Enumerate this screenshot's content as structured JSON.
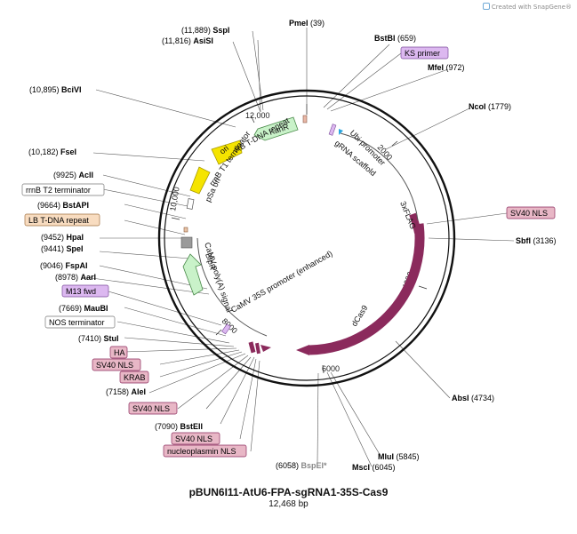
{
  "watermark": "Created with SnapGene®",
  "plasmid": {
    "name": "pBUN6I11-AtU6-FPA-sgRNA1-35S-Cas9",
    "size_label": "12,468 bp"
  },
  "ring_ticks": [
    "2000",
    "4000",
    "6000",
    "8000",
    "10,000",
    "12,000"
  ],
  "sites": [
    {
      "id": "pmei",
      "name": "PmeI",
      "pos": "(39)",
      "side": "right"
    },
    {
      "id": "bstbi",
      "name": "BstBI",
      "pos": "(659)",
      "side": "right"
    },
    {
      "id": "mfei",
      "name": "MfeI",
      "pos": "(972)",
      "side": "right"
    },
    {
      "id": "ncoi",
      "name": "NcoI",
      "pos": "(1779)",
      "side": "right"
    },
    {
      "id": "sbfi",
      "name": "SbfI",
      "pos": "(3136)",
      "side": "right"
    },
    {
      "id": "absi",
      "name": "AbsI",
      "pos": "(4734)",
      "side": "right"
    },
    {
      "id": "mlui",
      "name": "MluI",
      "pos": "(5845)",
      "side": "right"
    },
    {
      "id": "msci",
      "name": "MscI",
      "pos": "(6045)",
      "side": "right"
    },
    {
      "id": "bspei",
      "name": "BspEI*",
      "pos": "(6058)",
      "side": "left",
      "grey": true
    },
    {
      "id": "bsteii",
      "name": "BstEII",
      "pos": "(7090)",
      "side": "left"
    },
    {
      "id": "alei",
      "name": "AleI",
      "pos": "(7158)",
      "side": "left"
    },
    {
      "id": "stui",
      "name": "StuI",
      "pos": "(7410)",
      "side": "left"
    },
    {
      "id": "maubi",
      "name": "MauBI",
      "pos": "(7669)",
      "side": "left"
    },
    {
      "id": "aari",
      "name": "AarI",
      "pos": "(8978)",
      "side": "left"
    },
    {
      "id": "fspai",
      "name": "FspAI",
      "pos": "(9046)",
      "side": "left"
    },
    {
      "id": "spei",
      "name": "SpeI",
      "pos": "(9441)",
      "side": "left"
    },
    {
      "id": "hpai",
      "name": "HpaI",
      "pos": "(9452)",
      "side": "left"
    },
    {
      "id": "bstapi",
      "name": "BstAPI",
      "pos": "(9664)",
      "side": "left"
    },
    {
      "id": "acli",
      "name": "AclI",
      "pos": "(9925)",
      "side": "left"
    },
    {
      "id": "fsei",
      "name": "FseI",
      "pos": "(10,182)",
      "side": "left"
    },
    {
      "id": "bcivi",
      "name": "BciVI",
      "pos": "(10,895)",
      "side": "left"
    },
    {
      "id": "asisi",
      "name": "AsiSI",
      "pos": "(11,816)",
      "side": "left"
    },
    {
      "id": "sspi",
      "name": "SspI",
      "pos": "(11,889)",
      "side": "left"
    }
  ],
  "boxed_labels": [
    {
      "id": "ks-primer",
      "text": "KS primer",
      "kind": "primer"
    },
    {
      "id": "sv40-nls-right",
      "text": "SV40 NLS",
      "kind": "pink"
    },
    {
      "id": "rrnb-t2",
      "text": "rrnB T2 terminator",
      "kind": "plain"
    },
    {
      "id": "lb-tdna",
      "text": "LB T-DNA repeat",
      "kind": "orange"
    },
    {
      "id": "m13-fwd",
      "text": "M13 fwd",
      "kind": "primer"
    },
    {
      "id": "nos-term",
      "text": "NOS terminator",
      "kind": "plain"
    },
    {
      "id": "ha",
      "text": "HA",
      "kind": "pink"
    },
    {
      "id": "sv40-nls-1",
      "text": "SV40 NLS",
      "kind": "pink"
    },
    {
      "id": "krab",
      "text": "KRAB",
      "kind": "pink"
    },
    {
      "id": "sv40-nls-2",
      "text": "SV40 NLS",
      "kind": "pink"
    },
    {
      "id": "sv40-nls-3",
      "text": "SV40 NLS",
      "kind": "pink"
    },
    {
      "id": "nucleoplasmin",
      "text": "nucleoplasmin NLS",
      "kind": "pink"
    }
  ],
  "features": {
    "kanr": "KanR",
    "ori": "ori",
    "rb_tdna": "RB T-DNA repeat",
    "rrnb_t1": "rrnB T1 terminator",
    "psa_ori": "pSa ori",
    "grna_scaffold": "gRNA scaffold",
    "ubi_promoter": "Ubi promoter",
    "flag": "3xFLAG",
    "dcas9": "dCas9",
    "promoter_35s": "CaMV 35S promoter (enhanced)",
    "polya": "CaMV poly(A) signal",
    "blpr": "BlpR"
  },
  "colors": {
    "dcas9": "#8b2a5c",
    "kanr": "#c9f2c9",
    "ori": "#f5e400",
    "blpr": "#c9f2c9",
    "pink_box": "#e8b7c6",
    "primer_box": "#dcb8f0",
    "orange_box": "#f8dcc0",
    "grey_feature": "#9a9a9a",
    "grna": "#2aa6e0"
  }
}
